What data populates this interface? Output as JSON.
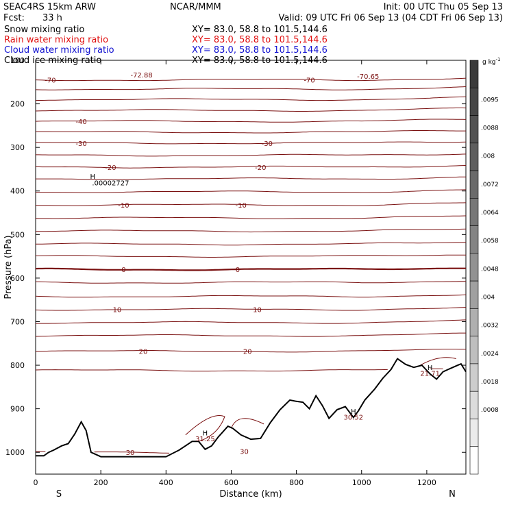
{
  "header": {
    "model": "SEAC4RS 15km ARW",
    "center": "NCAR/MMM",
    "init": "Init: 00 UTC Thu 05 Sep 13",
    "fcst_label": "Fcst:",
    "fcst_value": "33 h",
    "valid": "Valid: 09 UTC Fri 06 Sep 13 (04 CDT Fri 06 Sep 13)"
  },
  "legend": [
    {
      "name": "Snow mixing ratio",
      "xy": "XY=  83.0, 58.8 to 101.5,144.6",
      "color": "#000000"
    },
    {
      "name": "Rain water mixing ratio",
      "xy": "XY=  83.0, 58.8 to 101.5,144.6",
      "color": "#e01010"
    },
    {
      "name": "Cloud water mixing ratio",
      "xy": "XY=  83.0, 58.8 to 101.5,144.6",
      "color": "#1010d0"
    },
    {
      "name": "Cloud ice mixing ratio",
      "xy": "XY=  83.0, 58.8 to 101.5,144.6",
      "color": "#000000"
    }
  ],
  "chart_data": {
    "type": "line",
    "xlabel": "Distance (km)",
    "ylabel": "Pressure (hPa)",
    "xlim": [
      0,
      1320
    ],
    "ylim": [
      1050,
      100
    ],
    "x_ticks": [
      0,
      200,
      400,
      600,
      800,
      1000,
      1200
    ],
    "y_ticks": [
      200,
      300,
      400,
      500,
      600,
      700,
      800,
      900,
      1000
    ],
    "y_top_tick": "100",
    "x_end_labels": {
      "left": "S",
      "right": "N"
    },
    "contour_color": "#7a1010",
    "terrain_color": "#000000",
    "terrain": {
      "x": [
        0,
        25,
        40,
        55,
        80,
        100,
        120,
        140,
        155,
        170,
        200,
        240,
        300,
        360,
        400,
        440,
        460,
        480,
        500,
        520,
        540,
        560,
        590,
        605,
        630,
        660,
        690,
        720,
        750,
        780,
        800,
        820,
        840,
        860,
        880,
        900,
        925,
        950,
        975,
        990,
        1010,
        1040,
        1065,
        1090,
        1110,
        1135,
        1160,
        1185,
        1210,
        1230,
        1250,
        1265,
        1280,
        1295,
        1305,
        1320
      ],
      "p": [
        1008,
        1008,
        1000,
        995,
        985,
        980,
        958,
        930,
        950,
        1000,
        1010,
        1010,
        1010,
        1010,
        1010,
        995,
        985,
        975,
        975,
        993,
        985,
        965,
        940,
        945,
        960,
        970,
        968,
        932,
        902,
        880,
        883,
        885,
        900,
        870,
        893,
        922,
        902,
        895,
        920,
        905,
        880,
        855,
        830,
        810,
        785,
        798,
        805,
        800,
        820,
        832,
        815,
        810,
        805,
        800,
        797,
        815
      ]
    },
    "contours": [
      {
        "p": 145,
        "label": "-70",
        "label_x": 45,
        "label2": "-70",
        "label2_x": 840
      },
      {
        "p": 166,
        "label": "",
        "label_x": null
      },
      {
        "p": 190,
        "label": "",
        "label_x": null
      },
      {
        "p": 215,
        "label": "",
        "label_x": null
      },
      {
        "p": 240,
        "label": "-40",
        "label_x": 140
      },
      {
        "p": 265,
        "label": "",
        "label_x": null
      },
      {
        "p": 290,
        "label": "-30",
        "label_x": 140,
        "label2": "-30",
        "label2_x": 710
      },
      {
        "p": 318,
        "label": "",
        "label_x": null
      },
      {
        "p": 345,
        "label": "-20",
        "label_x": 230,
        "label2": "-20",
        "label2_x": 690
      },
      {
        "p": 372,
        "label": "",
        "label_x": null
      },
      {
        "p": 402,
        "label": "",
        "label_x": null
      },
      {
        "p": 432,
        "label": "-10",
        "label_x": 270,
        "label2": "-10",
        "label2_x": 630
      },
      {
        "p": 462,
        "label": "",
        "label_x": null
      },
      {
        "p": 492,
        "label": "",
        "label_x": null
      },
      {
        "p": 522,
        "label": "",
        "label_x": null
      },
      {
        "p": 550,
        "label": "",
        "label_x": null
      },
      {
        "p": 580,
        "label": "0",
        "label_x": 270,
        "label2": "0",
        "label2_x": 620,
        "bold": true
      },
      {
        "p": 610,
        "label": "",
        "label_x": null
      },
      {
        "p": 642,
        "label": "",
        "label_x": null
      },
      {
        "p": 672,
        "label": "10",
        "label_x": 250,
        "label2": "10",
        "label2_x": 680
      },
      {
        "p": 702,
        "label": "",
        "label_x": null
      },
      {
        "p": 732,
        "label": "",
        "label_x": null
      },
      {
        "p": 768,
        "label": "20",
        "label_x": 330,
        "label2": "20",
        "label2_x": 650
      },
      {
        "p": 812,
        "label": "",
        "label_x": null
      },
      {
        "p": 1000,
        "label": "30",
        "label_x": 290
      }
    ],
    "annotations": [
      {
        "text": "-72.88",
        "x": 325,
        "p": 133
      },
      {
        "text": "-70.65",
        "x": 1020,
        "p": 136
      },
      {
        "text": "H",
        "x": 175,
        "p": 366
      },
      {
        "text": ".00002727",
        "x": 230,
        "p": 381
      },
      {
        "text": "H",
        "x": 520,
        "p": 955
      },
      {
        "text": "31.25",
        "x": 520,
        "p": 968
      },
      {
        "text": "30",
        "x": 640,
        "p": 997
      },
      {
        "text": "H",
        "x": 975,
        "p": 905
      },
      {
        "text": "30.52",
        "x": 975,
        "p": 919
      },
      {
        "text": "H",
        "x": 1210,
        "p": 805
      },
      {
        "text": "21.71",
        "x": 1210,
        "p": 818
      }
    ],
    "colorbar": {
      "unit": "g kg",
      "unit_sup": "-1",
      "labels": [
        ".0095",
        ".0088",
        ".008",
        ".0072",
        ".0064",
        ".0058",
        ".0048",
        ".004",
        ".0032",
        ".0024",
        ".0018",
        ".0008"
      ],
      "colors": [
        "#3a3a3a",
        "#464646",
        "#525252",
        "#5e5e5e",
        "#6a6a6a",
        "#777777",
        "#848484",
        "#929292",
        "#a0a0a0",
        "#afafaf",
        "#bebebe",
        "#cdcdcd",
        "#dcdcdc",
        "#ebebeb",
        "#ffffff"
      ]
    }
  }
}
